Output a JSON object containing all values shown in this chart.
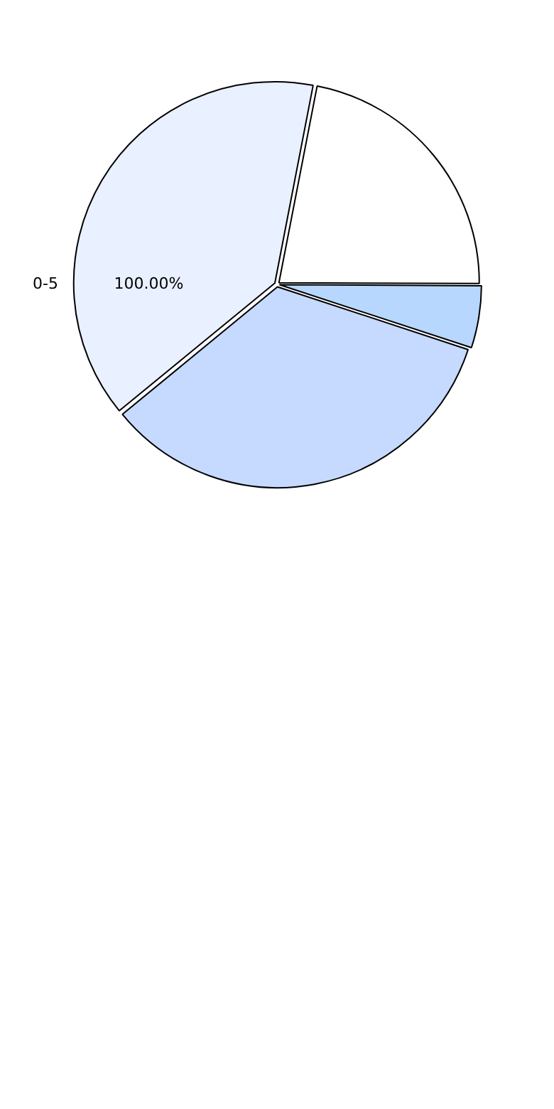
{
  "chart_data": {
    "type": "pie",
    "categories": [
      null,
      null,
      null,
      "0-5"
    ],
    "values": [
      22,
      5,
      34,
      39
    ],
    "colors": [
      "#ffffff",
      "#b7d7ff",
      "#c6d9ff",
      "#e9f0ff"
    ],
    "annotations": [
      "100.00%"
    ]
  }
}
